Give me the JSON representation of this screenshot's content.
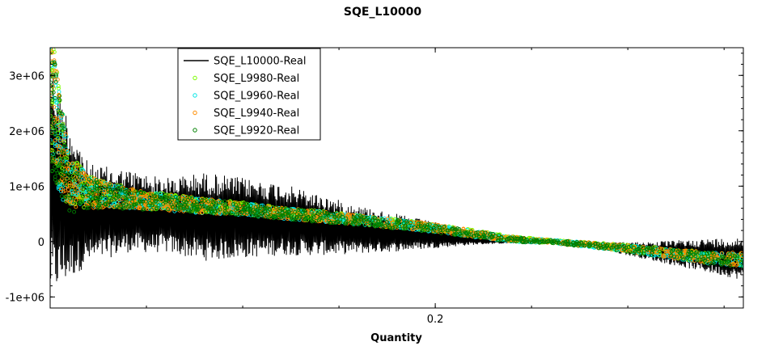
{
  "chart_data": {
    "type": "scatter",
    "title": "SQE_L10000",
    "xlabel": "Quantity",
    "ylabel": "",
    "xlim": [
      0.0,
      0.36
    ],
    "ylim": [
      -1200000,
      3500000
    ],
    "x_ticks": [
      {
        "value": 0.2,
        "label": "0.2"
      }
    ],
    "y_ticks": [
      {
        "value": -1000000,
        "label": "-1e+06"
      },
      {
        "value": 0,
        "label": "0"
      },
      {
        "value": 1000000,
        "label": "1e+06"
      },
      {
        "value": 2000000,
        "label": "2e+06"
      },
      {
        "value": 3000000,
        "label": "3e+06"
      }
    ],
    "grid": false,
    "legend_position": "top-left",
    "series": [
      {
        "name": "SQE_L10000-Real",
        "style": "line",
        "color": "#000000",
        "x": [
          0.0,
          0.01,
          0.02,
          0.04,
          0.06,
          0.08,
          0.1,
          0.12,
          0.14,
          0.16,
          0.18,
          0.2,
          0.22,
          0.24,
          0.26,
          0.28,
          0.3,
          0.32,
          0.34,
          0.36
        ],
        "upper": [
          3300000,
          2200000,
          1400000,
          1300000,
          1150000,
          1250000,
          1150000,
          1050000,
          850000,
          650000,
          500000,
          350000,
          150000,
          30000,
          0,
          -20000,
          -10000,
          10000,
          50000,
          80000
        ],
        "lower": [
          -1000000,
          -700000,
          -400000,
          -200000,
          -200000,
          -350000,
          -300000,
          -250000,
          -250000,
          -220000,
          -180000,
          -120000,
          -60000,
          -30000,
          -20000,
          -100000,
          -250000,
          -400000,
          -550000,
          -700000
        ]
      },
      {
        "name": "SQE_L9980-Real",
        "style": "markers",
        "color": "#7cfc00",
        "x": [
          0.0,
          0.005,
          0.01,
          0.02,
          0.03,
          0.05,
          0.08,
          0.1,
          0.12,
          0.15,
          0.18,
          0.2,
          0.22,
          0.24,
          0.26,
          0.28,
          0.3,
          0.32,
          0.34,
          0.36
        ],
        "y": [
          2800000,
          1800000,
          1100000,
          900000,
          850000,
          750000,
          650000,
          600000,
          520000,
          430000,
          330000,
          250000,
          150000,
          50000,
          0,
          -50000,
          -120000,
          -200000,
          -280000,
          -320000
        ],
        "spread": [
          1300000,
          900000,
          500000,
          300000,
          220000,
          160000,
          130000,
          110000,
          100000,
          90000,
          80000,
          70000,
          60000,
          45000,
          30000,
          40000,
          60000,
          80000,
          100000,
          120000
        ]
      },
      {
        "name": "SQE_L9960-Real",
        "style": "markers",
        "color": "#00e5e5",
        "x": [
          0.0,
          0.005,
          0.01,
          0.02,
          0.03,
          0.05,
          0.08,
          0.1,
          0.12,
          0.15,
          0.18,
          0.2,
          0.22,
          0.24,
          0.26,
          0.28,
          0.3,
          0.32,
          0.34,
          0.36
        ],
        "y": [
          2700000,
          1750000,
          1050000,
          900000,
          830000,
          740000,
          640000,
          590000,
          510000,
          420000,
          320000,
          240000,
          140000,
          40000,
          0,
          -60000,
          -130000,
          -210000,
          -290000,
          -330000
        ],
        "spread": [
          1300000,
          900000,
          500000,
          300000,
          220000,
          160000,
          130000,
          110000,
          100000,
          90000,
          80000,
          70000,
          60000,
          45000,
          30000,
          40000,
          60000,
          80000,
          100000,
          120000
        ]
      },
      {
        "name": "SQE_L9940-Real",
        "style": "markers",
        "color": "#ff8c00",
        "x": [
          0.0,
          0.005,
          0.01,
          0.02,
          0.03,
          0.05,
          0.08,
          0.1,
          0.12,
          0.15,
          0.18,
          0.2,
          0.22,
          0.24,
          0.26,
          0.28,
          0.3,
          0.32,
          0.34,
          0.36
        ],
        "y": [
          2750000,
          1780000,
          1080000,
          880000,
          840000,
          745000,
          645000,
          595000,
          515000,
          425000,
          325000,
          245000,
          145000,
          45000,
          0,
          -55000,
          -125000,
          -205000,
          -285000,
          -325000
        ],
        "spread": [
          1300000,
          900000,
          500000,
          300000,
          220000,
          160000,
          130000,
          110000,
          100000,
          90000,
          80000,
          70000,
          60000,
          45000,
          30000,
          40000,
          60000,
          80000,
          100000,
          120000
        ]
      },
      {
        "name": "SQE_L9920-Real",
        "style": "markers",
        "color": "#008000",
        "x": [
          0.0,
          0.005,
          0.01,
          0.02,
          0.03,
          0.05,
          0.08,
          0.1,
          0.12,
          0.15,
          0.18,
          0.2,
          0.22,
          0.24,
          0.26,
          0.28,
          0.3,
          0.32,
          0.34,
          0.36
        ],
        "y": [
          2650000,
          1700000,
          1000000,
          870000,
          820000,
          735000,
          635000,
          585000,
          505000,
          415000,
          315000,
          235000,
          135000,
          35000,
          0,
          -65000,
          -135000,
          -215000,
          -295000,
          -335000
        ],
        "spread": [
          1300000,
          900000,
          500000,
          300000,
          220000,
          160000,
          130000,
          110000,
          100000,
          90000,
          80000,
          70000,
          60000,
          45000,
          30000,
          40000,
          60000,
          80000,
          100000,
          120000
        ]
      }
    ]
  }
}
